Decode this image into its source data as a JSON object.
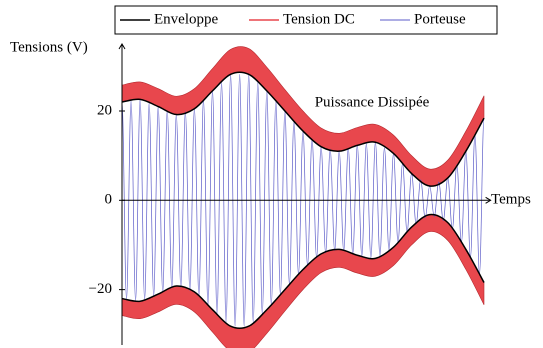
{
  "chart_data": {
    "type": "envelope",
    "ylabel": "Tensions (V)",
    "xlabel": "Temps",
    "annotation": "Puissance Dissipée",
    "xlim": [
      0,
      10.1
    ],
    "ylim": [
      -32.4,
      35
    ],
    "yticks": [
      20,
      0,
      {
        "value": -20,
        "label": "−20"
      }
    ],
    "series": [
      {
        "name": "Enveloppe",
        "color": "#000000",
        "x": [
          0,
          0.5,
          1,
          1.5,
          2,
          2.5,
          3,
          3.5,
          4,
          4.5,
          5,
          5.5,
          6,
          6.5,
          7,
          7.5,
          8,
          8.5,
          9,
          9.5,
          10
        ],
        "values": [
          22,
          22.6,
          21,
          19.2,
          20.5,
          24.5,
          28.2,
          28.2,
          24.5,
          20,
          15.5,
          12,
          11,
          12.3,
          13,
          10.5,
          6,
          3.2,
          5,
          11,
          18.4
        ]
      },
      {
        "name": "Tension DC",
        "color": "#e8474d",
        "x": [
          0,
          0.5,
          1,
          1.5,
          2,
          2.5,
          3,
          3.5,
          4,
          4.5,
          5,
          5.5,
          6,
          6.5,
          7,
          7.5,
          8,
          8.5,
          9,
          9.5,
          10
        ],
        "values": [
          25.8,
          26.5,
          25,
          23.3,
          25,
          29.5,
          33.8,
          34,
          29.8,
          24.8,
          20,
          16.2,
          15,
          16.3,
          17,
          14.6,
          10,
          7,
          9,
          15.5,
          23.4
        ]
      },
      {
        "name": "Porteuse",
        "color": "#5b5bc8",
        "x": [
          0,
          0.125,
          0.25,
          0.375,
          0.5,
          0.625,
          0.75,
          0.875,
          1,
          1.125,
          1.25,
          1.375,
          1.5,
          1.625,
          1.75,
          1.875,
          2,
          2.125,
          2.25,
          2.375,
          2.5,
          2.625,
          2.75,
          2.875,
          3,
          3.125,
          3.25,
          3.375,
          3.5,
          3.625,
          3.75,
          3.875,
          4,
          4.125,
          4.25,
          4.375,
          4.5,
          4.625,
          4.75,
          4.875,
          5,
          5.125,
          5.25,
          5.375,
          5.5,
          5.625,
          5.75,
          5.875,
          6,
          6.125,
          6.25,
          6.375,
          6.5,
          6.625,
          6.75,
          6.875,
          7,
          7.125,
          7.25,
          7.375,
          7.5,
          7.625,
          7.75,
          7.875,
          8,
          8.125,
          8.25,
          8.375,
          8.5,
          8.625,
          8.75,
          8.875,
          9,
          9.125,
          9.25,
          9.375,
          9.5,
          9.625,
          9.75,
          9.875,
          10
        ],
        "values": [
          22,
          -22.15,
          22.3,
          -22.45,
          22.6,
          -22.2,
          21.8,
          -21.4,
          21,
          -20.55,
          20.1,
          -19.65,
          19.2,
          -19.53,
          19.85,
          -20.18,
          20.5,
          -21.5,
          22.5,
          -23.5,
          24.5,
          -25.43,
          26.35,
          -27.28,
          28.2,
          -28.2,
          28.2,
          -28.2,
          28.2,
          -27.28,
          26.35,
          -25.43,
          24.5,
          -23.38,
          22.25,
          -21.13,
          20,
          -18.88,
          17.75,
          -16.63,
          15.5,
          -14.63,
          13.75,
          -12.88,
          12,
          -11.75,
          11.5,
          -11.25,
          11,
          -11.33,
          11.65,
          -11.98,
          12.3,
          -12.48,
          12.65,
          -12.83,
          13,
          -12.38,
          11.75,
          -11.13,
          10.5,
          -9.38,
          8.25,
          -7.13,
          6,
          -5.3,
          4.6,
          -3.9,
          3.2,
          -3.65,
          4.1,
          -4.55,
          5,
          -6.5,
          8,
          -9.5,
          11,
          -12.85,
          14.7,
          -16.55,
          18.4
        ]
      }
    ]
  }
}
